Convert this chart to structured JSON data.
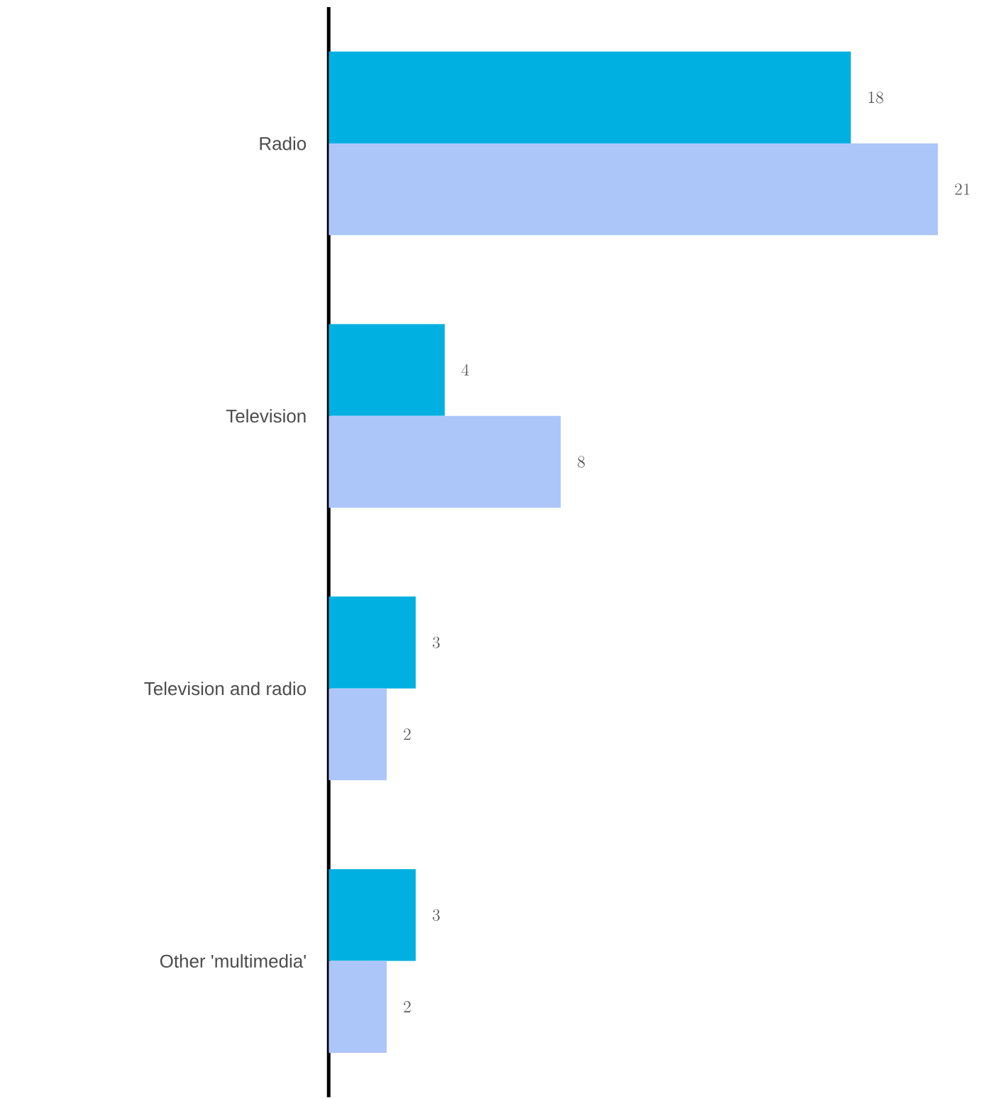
{
  "chart_data": {
    "type": "bar",
    "orientation": "horizontal",
    "categories": [
      "Radio",
      "Television",
      "Television and radio",
      "Other 'multimedia'"
    ],
    "series": [
      {
        "color": "#00b0e0",
        "values": [
          18,
          4,
          3,
          3
        ]
      },
      {
        "color": "#adc6fa",
        "values": [
          21,
          8,
          2,
          2
        ]
      }
    ],
    "data_labels": true
  }
}
